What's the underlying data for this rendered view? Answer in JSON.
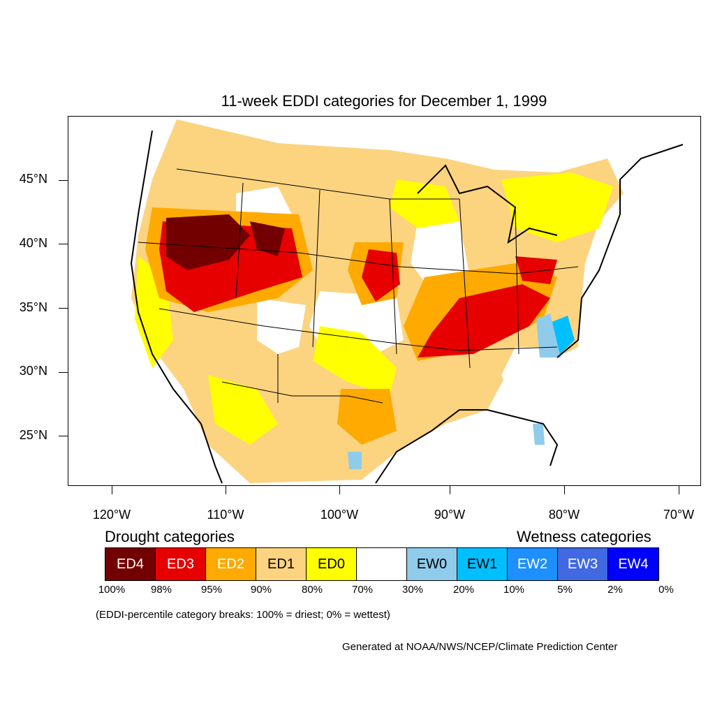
{
  "title": "11-week EDDI categories for December 1, 1999",
  "latitude_labels": [
    "45°N",
    "40°N",
    "35°N",
    "30°N",
    "25°N"
  ],
  "longitude_labels": [
    "120°W",
    "110°W",
    "100°W",
    "90°W",
    "80°W",
    "70°W"
  ],
  "legend": {
    "drought_heading": "Drought categories",
    "wetness_heading": "Wetness categories",
    "categories": [
      {
        "label": "ED4",
        "color": "#730000",
        "text_color": "#ffffff"
      },
      {
        "label": "ED3",
        "color": "#e60000",
        "text_color": "#ffffff"
      },
      {
        "label": "ED2",
        "color": "#ffaa00",
        "text_color": "#ffffff"
      },
      {
        "label": "ED1",
        "color": "#fcd37f",
        "text_color": "#000000"
      },
      {
        "label": "ED0",
        "color": "#ffff00",
        "text_color": "#000000"
      },
      {
        "label": "",
        "color": "#ffffff",
        "text_color": "#000000"
      },
      {
        "label": "EW0",
        "color": "#8fcbeb",
        "text_color": "#000000"
      },
      {
        "label": "EW1",
        "color": "#00bfff",
        "text_color": "#000000"
      },
      {
        "label": "EW2",
        "color": "#1e8fff",
        "text_color": "#ffffff"
      },
      {
        "label": "EW3",
        "color": "#4169e1",
        "text_color": "#ffffff"
      },
      {
        "label": "EW4",
        "color": "#0000ff",
        "text_color": "#ffffff"
      }
    ],
    "breaks": [
      "100%",
      "98%",
      "95%",
      "90%",
      "80%",
      "70%",
      "30%",
      "20%",
      "10%",
      "5%",
      "2%",
      "0%"
    ]
  },
  "note": "(EDDI-percentile category breaks: 100% = driest; 0% = wettest)",
  "credit": "Generated at NOAA/NWS/NCEP/Climate Prediction Center"
}
